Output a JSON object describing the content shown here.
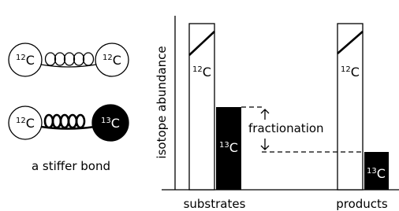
{
  "molecules": [
    {
      "left": {
        "mass": "12",
        "element": "C"
      },
      "right": {
        "mass": "12",
        "element": "C"
      }
    },
    {
      "left": {
        "mass": "12",
        "element": "C"
      },
      "right": {
        "mass": "13",
        "element": "C"
      }
    }
  ],
  "caption": "a stiffer bond",
  "y_axis_label": "isotope abundance",
  "annotation": "fractionation",
  "groups": [
    {
      "label": "substrates",
      "light": {
        "mass": "12",
        "element": "C"
      },
      "heavy": {
        "mass": "13",
        "element": "C"
      }
    },
    {
      "label": "products",
      "light": {
        "mass": "12",
        "element": "C"
      },
      "heavy": {
        "mass": "13",
        "element": "C"
      }
    }
  ]
}
